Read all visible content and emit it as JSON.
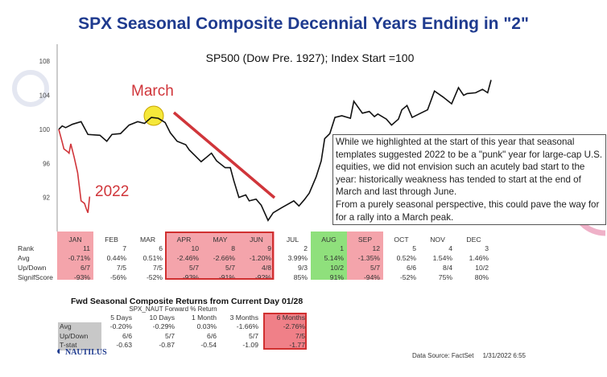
{
  "chart_data": {
    "type": "line",
    "title": "SPX Seasonal Composite Decennial Years Ending in \"2\"",
    "subtitle": "SP500 (Dow Pre. 1927); Index Start =100",
    "xlabel": "",
    "ylabel": "",
    "ylim": [
      88,
      110
    ],
    "yticks": [
      92,
      96,
      100,
      104,
      108
    ],
    "grid": false,
    "series": [
      {
        "name": "",
        "color": "#111111",
        "points": [
          [
            0,
            100
          ],
          [
            2,
            100.4
          ],
          [
            4,
            100.2
          ],
          [
            8,
            100.6
          ],
          [
            13,
            100.9
          ],
          [
            17,
            99.4
          ],
          [
            24,
            99.3
          ],
          [
            28,
            98.6
          ],
          [
            31,
            99.4
          ],
          [
            36,
            99.5
          ],
          [
            41,
            100.5
          ],
          [
            46,
            100.9
          ],
          [
            50,
            100.7
          ],
          [
            54,
            101.4
          ],
          [
            58,
            101.3
          ],
          [
            62,
            100.8
          ],
          [
            65,
            99.6
          ],
          [
            69,
            98.6
          ],
          [
            74,
            98.2
          ],
          [
            76,
            97.6
          ],
          [
            83,
            96.2
          ],
          [
            89,
            97.2
          ],
          [
            92,
            96.3
          ],
          [
            97,
            95.5
          ],
          [
            100,
            95.5
          ],
          [
            102,
            94
          ],
          [
            105,
            92
          ],
          [
            109,
            92.3
          ],
          [
            111,
            91.6
          ],
          [
            115,
            91.8
          ],
          [
            118,
            91.1
          ],
          [
            122,
            89.3
          ],
          [
            125,
            90.2
          ],
          [
            130,
            90.8
          ],
          [
            137,
            91.6
          ],
          [
            140,
            91
          ],
          [
            143,
            91.7
          ],
          [
            146,
            92.5
          ],
          [
            150,
            94.4
          ],
          [
            153,
            96.3
          ],
          [
            155,
            98.9
          ],
          [
            158,
            99.5
          ],
          [
            161,
            101.4
          ],
          [
            165,
            101.6
          ],
          [
            170,
            101.3
          ],
          [
            172,
            103.3
          ],
          [
            177,
            101.9
          ],
          [
            181,
            102.1
          ],
          [
            184,
            101.5
          ],
          [
            186,
            101.8
          ],
          [
            191,
            101.2
          ],
          [
            194,
            100.5
          ],
          [
            198,
            101.2
          ],
          [
            200,
            102.3
          ],
          [
            203,
            102.8
          ],
          [
            206,
            101.4
          ],
          [
            210,
            101.8
          ],
          [
            215,
            102.3
          ],
          [
            219,
            104.5
          ],
          [
            224,
            103.8
          ],
          [
            229,
            103
          ],
          [
            233,
            104.9
          ],
          [
            236,
            104
          ],
          [
            238,
            104.2
          ],
          [
            243,
            104.3
          ],
          [
            247,
            104.7
          ],
          [
            250,
            104.3
          ],
          [
            252,
            105.8
          ]
        ]
      },
      {
        "name": "2022",
        "color": "#d0353a",
        "points": [
          [
            0,
            100
          ],
          [
            2,
            98.5
          ],
          [
            3,
            97.7
          ],
          [
            5,
            97.4
          ],
          [
            6,
            97.2
          ],
          [
            7,
            98.3
          ],
          [
            9,
            96.7
          ],
          [
            11,
            94.9
          ],
          [
            13,
            91.6
          ],
          [
            15,
            91.3
          ],
          [
            16,
            90.7
          ],
          [
            17,
            90.2
          ],
          [
            18,
            92.1
          ]
        ]
      }
    ],
    "annotations": {
      "march_label": "March",
      "year_label": "2022",
      "note": [
        "While we highlighted at the start of this year that seasonal templates suggested 2022 to be a \"punk\" year for large-cap U.S. equities, we did not envision such an acutely bad start to the year: historically weakness has tended to start at the end of March and last through June.",
        "From a purely seasonal perspective, this could pave the way for for a rally into a March peak."
      ]
    }
  },
  "monthly_table": {
    "row_labels": [
      "Rank",
      "Avg",
      "Up/Down",
      "SignifScore"
    ],
    "months": [
      {
        "m": "JAN",
        "rank": "11",
        "avg": "-0.71%",
        "ud": "6/7",
        "sig": "-93%",
        "hl": "red"
      },
      {
        "m": "FEB",
        "rank": "7",
        "avg": "0.44%",
        "ud": "7/5",
        "sig": "-56%",
        "hl": ""
      },
      {
        "m": "MAR",
        "rank": "6",
        "avg": "0.51%",
        "ud": "7/5",
        "sig": "-52%",
        "hl": ""
      },
      {
        "m": "APR",
        "rank": "10",
        "avg": "-2.46%",
        "ud": "5/7",
        "sig": "-93%",
        "hl": "red"
      },
      {
        "m": "MAY",
        "rank": "8",
        "avg": "-2.66%",
        "ud": "5/7",
        "sig": "-91%",
        "hl": "red"
      },
      {
        "m": "JUN",
        "rank": "9",
        "avg": "-1.20%",
        "ud": "4/8",
        "sig": "-92%",
        "hl": "red"
      },
      {
        "m": "JUL",
        "rank": "2",
        "avg": "3.99%",
        "ud": "9/3",
        "sig": "85%",
        "hl": ""
      },
      {
        "m": "AUG",
        "rank": "1",
        "avg": "5.14%",
        "ud": "10/2",
        "sig": "91%",
        "hl": "green"
      },
      {
        "m": "SEP",
        "rank": "12",
        "avg": "-1.35%",
        "ud": "5/7",
        "sig": "-94%",
        "hl": "red"
      },
      {
        "m": "OCT",
        "rank": "5",
        "avg": "0.52%",
        "ud": "6/6",
        "sig": "-52%",
        "hl": ""
      },
      {
        "m": "NOV",
        "rank": "4",
        "avg": "1.54%",
        "ud": "8/4",
        "sig": "75%",
        "hl": ""
      },
      {
        "m": "DEC",
        "rank": "3",
        "avg": "1.46%",
        "ud": "10/2",
        "sig": "80%",
        "hl": ""
      }
    ]
  },
  "forward_table": {
    "title": "Fwd Seasonal Composite Returns from Current Day 01/28",
    "subtitle": "SPX_NAUT Forward % Return",
    "columns": [
      "5 Days",
      "10 Days",
      "1 Month",
      "3 Months",
      "6 Months"
    ],
    "rows": [
      {
        "label": "Avg",
        "values": [
          "-0.20%",
          "-0.29%",
          "0.03%",
          "-1.66%",
          "-2.76%"
        ]
      },
      {
        "label": "Up/Down",
        "values": [
          "6/6",
          "5/7",
          "6/6",
          "5/7",
          "7/5"
        ]
      },
      {
        "label": "T-stat",
        "values": [
          "-0.63",
          "-0.87",
          "-0.54",
          "-1.09",
          "-1.77"
        ]
      }
    ]
  },
  "footer": {
    "logo": "NAUTILUS",
    "source": "Data Source: FactSet",
    "timestamp": "1/31/2022 6:55"
  },
  "colors": {
    "title": "#1f3b8f",
    "highlight_red": "#f4a4ab",
    "highlight_green": "#8fe07c",
    "accent_red": "#d0353a"
  }
}
